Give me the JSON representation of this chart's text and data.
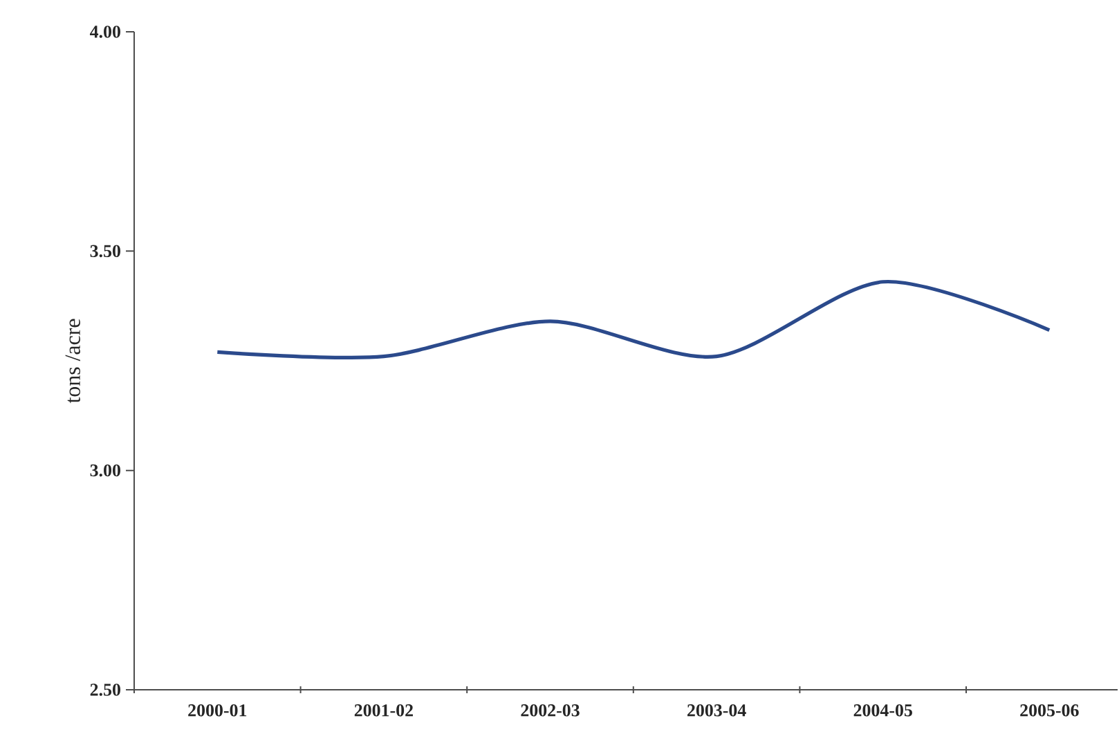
{
  "chart_data": {
    "type": "line",
    "ylabel": "tons /acre",
    "categories": [
      "2000-01",
      "2001-02",
      "2002-03",
      "2003-04",
      "2004-05",
      "2005-06"
    ],
    "series": [
      {
        "color": "#2b4a8c",
        "values": [
          3.27,
          3.26,
          3.34,
          3.26,
          3.43,
          3.32
        ]
      }
    ],
    "ylim": [
      2.5,
      4.0
    ],
    "yticks": [
      {
        "value": 2.5,
        "label": "2.50"
      },
      {
        "value": 3.0,
        "label": "3.00"
      },
      {
        "value": 3.5,
        "label": "3.50"
      },
      {
        "value": 4.0,
        "label": "4.00"
      }
    ],
    "grid": false,
    "legend": false,
    "marker": "none",
    "line_style": "solid"
  }
}
